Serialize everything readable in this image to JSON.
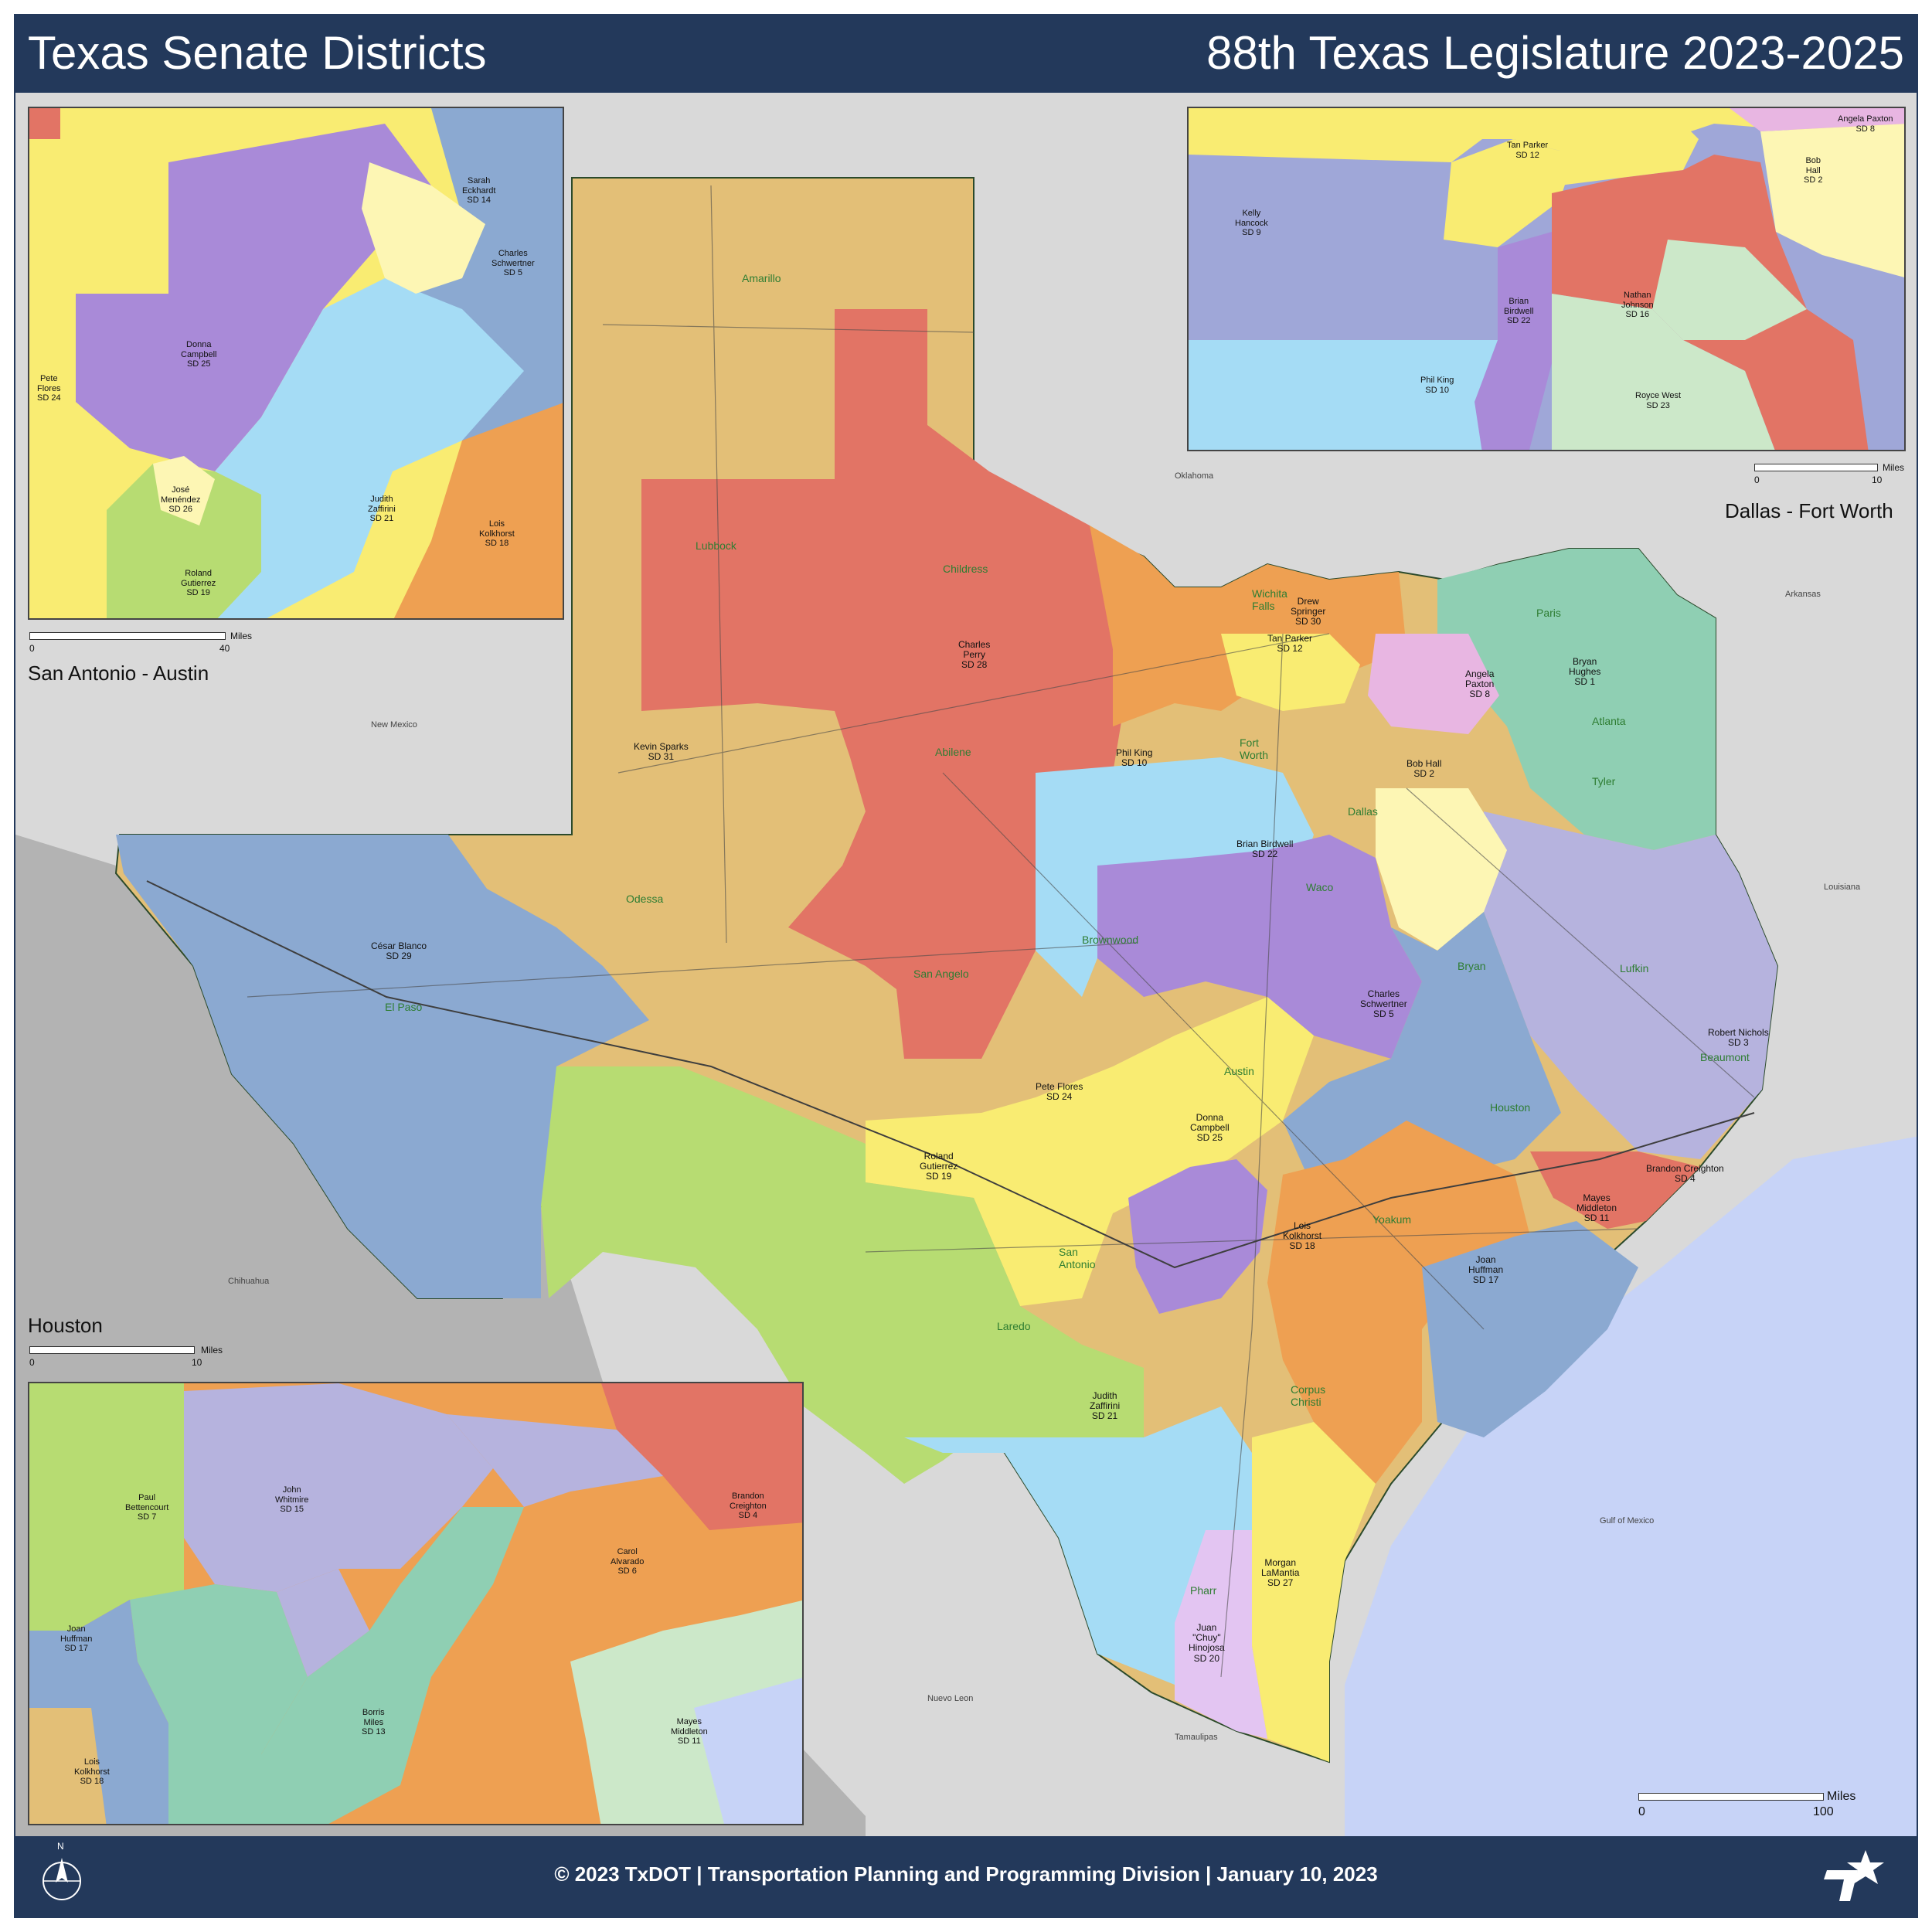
{
  "header": {
    "title": "Texas Senate Districts",
    "subtitle": "88th Texas Legislature 2023-2025"
  },
  "footer": {
    "text": "© 2023 TxDOT | Transportation Planning and Programming Division | January 10, 2023",
    "north_label": "N",
    "logo_text": "Texas Department of Transportation"
  },
  "colors": {
    "header_bg": "#23395b",
    "gulf": "#c7d3f7",
    "outside": "#d9d9d9",
    "mexico": "#b3b3b3",
    "tan": "#e3bf77",
    "red": "#e27465",
    "orange": "#eea052",
    "yellow": "#f9ec72",
    "sky": "#a5dcf5",
    "steel": "#8ba9d1",
    "purple": "#a98ad8",
    "lavender": "#b6b3de",
    "teal": "#8fcfb3",
    "green": "#b7dc72",
    "paleyellow": "#fdf6b4",
    "pink": "#e8b6e2",
    "mint": "#cce8c9",
    "periwinkle": "#9fa7d8",
    "city": "#2e7d32"
  },
  "regions": {
    "new_mexico": "New Mexico",
    "oklahoma": "Oklahoma",
    "arkansas": "Arkansas",
    "louisiana": "Louisiana",
    "chihuahua": "Chihuahua",
    "nuevo_leon": "Nuevo Leon",
    "tamaulipas": "Tamaulipas",
    "gulf": "Gulf of Mexico"
  },
  "cities": {
    "amarillo": "Amarillo",
    "lubbock": "Lubbock",
    "childress": "Childress",
    "wichita_falls": "Wichita\nFalls",
    "paris": "Paris",
    "atlanta": "Atlanta",
    "tyler": "Tyler",
    "fort_worth": "Fort\nWorth",
    "dallas": "Dallas",
    "abilene": "Abilene",
    "odessa": "Odessa",
    "el_paso": "El Paso",
    "san_angelo": "San Angelo",
    "brownwood": "Brownwood",
    "waco": "Waco",
    "bryan": "Bryan",
    "lufkin": "Lufkin",
    "beaumont": "Beaumont",
    "austin": "Austin",
    "houston": "Houston",
    "yoakum": "Yoakum",
    "san_antonio": "San\nAntonio",
    "laredo": "Laredo",
    "corpus_christi": "Corpus\nChristi",
    "pharr": "Pharr"
  },
  "districts": {
    "sd31": "Kevin Sparks\nSD 31",
    "sd28": "Charles\nPerry\nSD 28",
    "sd30": "Drew\nSpringer\nSD 30",
    "sd12": "Tan Parker\nSD 12",
    "sd8": "Angela\nPaxton\nSD 8",
    "sd1": "Bryan\nHughes\nSD 1",
    "sd10": "Phil King\nSD 10",
    "sd2": "Bob Hall\nSD 2",
    "sd22": "Brian Birdwell\nSD 22",
    "sd29": "César Blanco\nSD 29",
    "sd3": "Robert Nichols\nSD 3",
    "sd5": "Charles\nSchwertner\nSD 5",
    "sd24": "Pete Flores\nSD 24",
    "sd25": "Donna\nCampbell\nSD 25",
    "sd19": "Roland\nGutierrez\nSD 19",
    "sd4": "Brandon Creighton\nSD 4",
    "sd11": "Mayes\nMiddleton\nSD 11",
    "sd18": "Lois\nKolkhorst\nSD 18",
    "sd17": "Joan\nHuffman\nSD 17",
    "sd21": "Judith\nZaffirini\nSD 21",
    "sd27": "Morgan\nLaMantia\nSD 27",
    "sd20": "Juan\n\"Chuy\"\nHinojosa\nSD 20"
  },
  "scale_main": {
    "unit": "Miles",
    "min": "0",
    "max": "100"
  },
  "inset_sa": {
    "title": "San Antonio - Austin",
    "scale": {
      "unit": "Miles",
      "min": "0",
      "max": "40"
    },
    "labels": {
      "sd14": "Sarah\nEckhardt\nSD 14",
      "sd5": "Charles\nSchwertner\nSD 5",
      "sd25": "Donna\nCampbell\nSD 25",
      "sd24": "Pete\nFlores\nSD 24",
      "sd26": "José\nMenéndez\nSD 26",
      "sd21": "Judith\nZaffirini\nSD 21",
      "sd18": "Lois\nKolkhorst\nSD 18",
      "sd19": "Roland\nGutierrez\nSD 19"
    }
  },
  "inset_dfw": {
    "title": "Dallas - Fort Worth",
    "scale": {
      "unit": "Miles",
      "min": "0",
      "max": "10"
    },
    "labels": {
      "sd9": "Kelly\nHancock\nSD 9",
      "sd12": "Tan Parker\nSD 12",
      "sd8": "Angela Paxton\nSD 8",
      "sd2": "Bob\nHall\nSD 2",
      "sd22": "Brian\nBirdwell\nSD 22",
      "sd16": "Nathan\nJohnson\nSD 16",
      "sd10": "Phil King\nSD 10",
      "sd23": "Royce West\nSD 23"
    }
  },
  "inset_houston": {
    "title": "Houston",
    "scale": {
      "unit": "Miles",
      "min": "0",
      "max": "10"
    },
    "labels": {
      "sd7": "Paul\nBettencourt\nSD 7",
      "sd15": "John\nWhitmire\nSD 15",
      "sd4": "Brandon\nCreighton\nSD 4",
      "sd6": "Carol\nAlvarado\nSD 6",
      "sd17": "Joan\nHuffman\nSD 17",
      "sd13": "Borris\nMiles\nSD 13",
      "sd11": "Mayes\nMiddleton\nSD 11",
      "sd18": "Lois\nKolkhorst\nSD 18"
    }
  }
}
